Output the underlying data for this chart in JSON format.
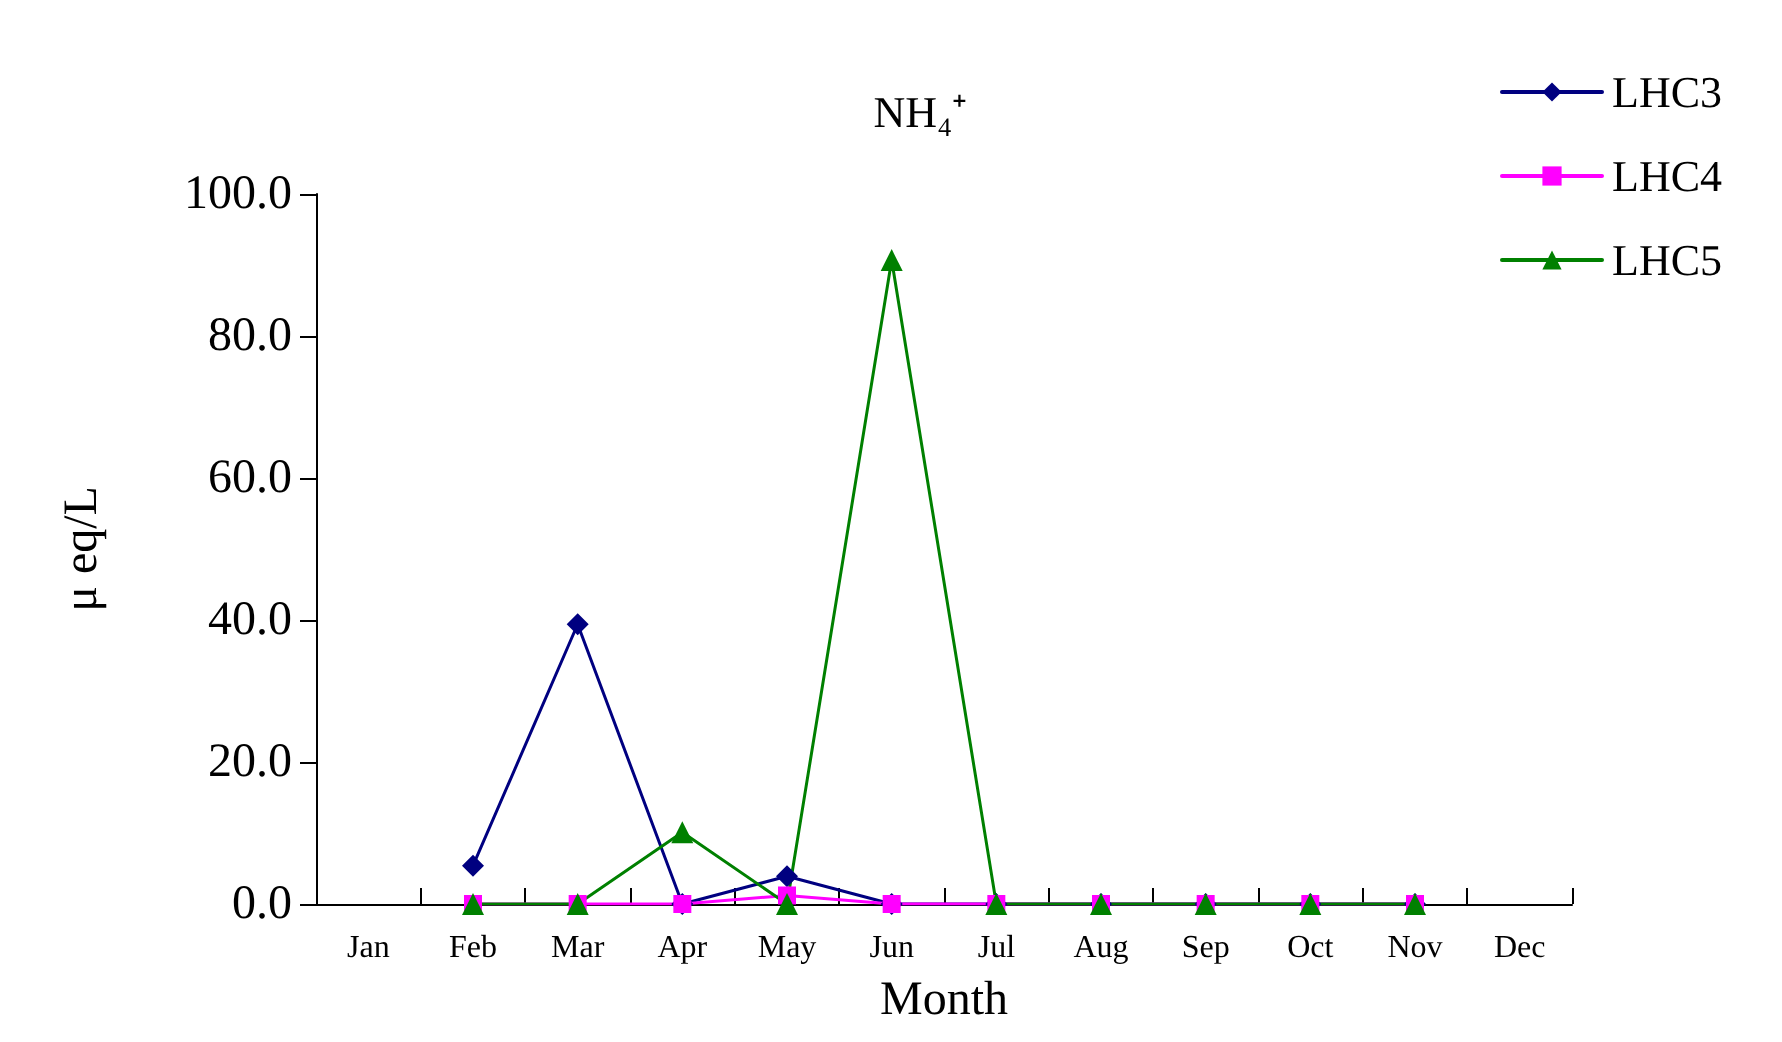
{
  "chart_data": {
    "type": "line",
    "title": "NH₄⁺",
    "xlabel": "Month",
    "ylabel": "μ eq/L",
    "categories": [
      "Jan",
      "Feb",
      "Mar",
      "Apr",
      "May",
      "Jun",
      "Jul",
      "Aug",
      "Sep",
      "Oct",
      "Nov",
      "Dec"
    ],
    "series": [
      {
        "name": "LHC3",
        "color": "#000080",
        "marker": "diamond",
        "values": [
          null,
          5.4,
          39.4,
          0,
          3.9,
          0,
          0,
          0,
          0,
          0,
          0,
          null
        ]
      },
      {
        "name": "LHC4",
        "color": "#ff00ff",
        "marker": "square",
        "values": [
          null,
          0,
          0,
          0,
          1.2,
          0,
          0,
          0,
          0,
          0,
          0,
          null
        ]
      },
      {
        "name": "LHC5",
        "color": "#008000",
        "marker": "triangle",
        "values": [
          null,
          0,
          0,
          10.1,
          0,
          90.7,
          0,
          0,
          0,
          0,
          0,
          null
        ]
      }
    ],
    "ylim": [
      0,
      100
    ],
    "yticks": [
      {
        "value": 0,
        "label": "0.0"
      },
      {
        "value": 20,
        "label": "20.0"
      },
      {
        "value": 40,
        "label": "40.0"
      },
      {
        "value": 60,
        "label": "60.0"
      },
      {
        "value": 80,
        "label": "80.0"
      },
      {
        "value": 100,
        "label": "100.0"
      }
    ],
    "grid": false,
    "legend": "top right",
    "line_style": "solid"
  }
}
